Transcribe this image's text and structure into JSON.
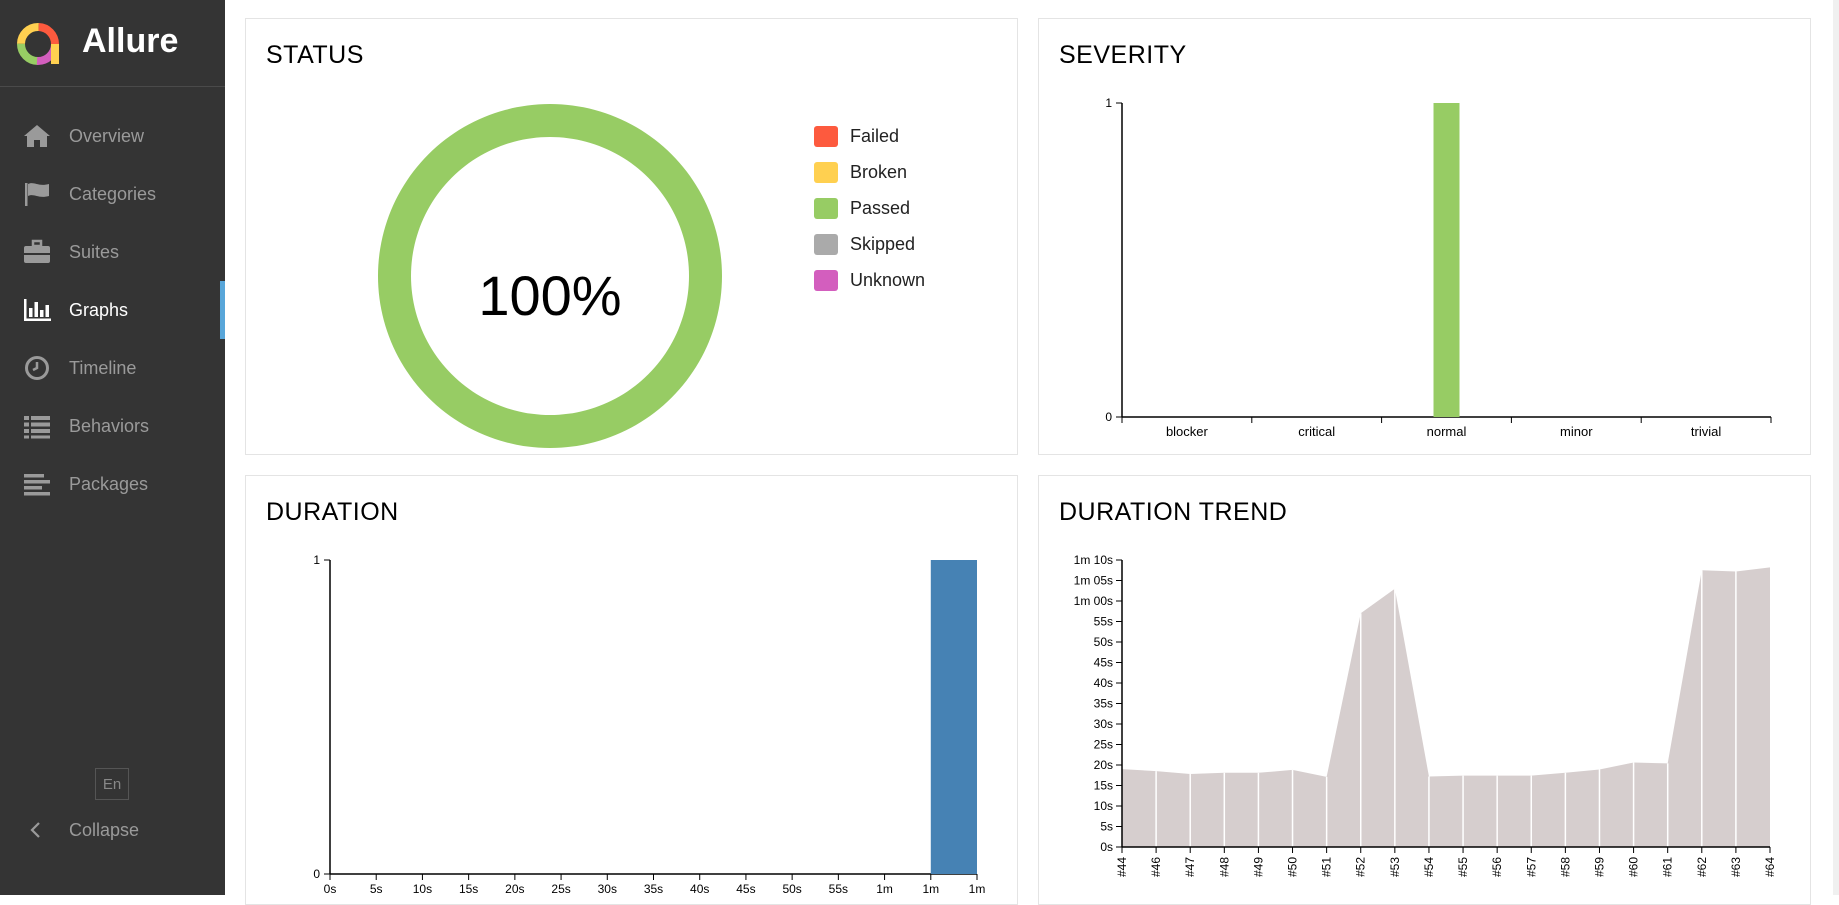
{
  "app": {
    "name": "Allure"
  },
  "sidebar": {
    "items": [
      {
        "label": "Overview",
        "icon": "home-icon"
      },
      {
        "label": "Categories",
        "icon": "flag-icon"
      },
      {
        "label": "Suites",
        "icon": "briefcase-icon"
      },
      {
        "label": "Graphs",
        "icon": "bar-chart-icon",
        "active": true
      },
      {
        "label": "Timeline",
        "icon": "clock-icon"
      },
      {
        "label": "Behaviors",
        "icon": "list-icon"
      },
      {
        "label": "Packages",
        "icon": "align-left-icon"
      }
    ],
    "language": "En",
    "collapse_label": "Collapse"
  },
  "status": {
    "title": "STATUS",
    "percent_label": "100%",
    "legend": [
      {
        "label": "Failed",
        "color": "#fd5a3e"
      },
      {
        "label": "Broken",
        "color": "#ffd050"
      },
      {
        "label": "Passed",
        "color": "#97cc64"
      },
      {
        "label": "Skipped",
        "color": "#aaaaaa"
      },
      {
        "label": "Unknown",
        "color": "#d35ebe"
      }
    ]
  },
  "severity": {
    "title": "SEVERITY"
  },
  "duration": {
    "title": "DURATION"
  },
  "duration_trend": {
    "title": "DURATION TREND"
  },
  "chart_data": [
    {
      "type": "pie",
      "title": "STATUS",
      "categories": [
        "Failed",
        "Broken",
        "Passed",
        "Skipped",
        "Unknown"
      ],
      "values": [
        0,
        0,
        1,
        0,
        0
      ],
      "colors": [
        "#fd5a3e",
        "#ffd050",
        "#97cc64",
        "#aaaaaa",
        "#d35ebe"
      ],
      "center_label": "100%",
      "legend": "right"
    },
    {
      "type": "bar",
      "title": "SEVERITY",
      "categories": [
        "blocker",
        "critical",
        "normal",
        "minor",
        "trivial"
      ],
      "values": [
        0,
        0,
        1,
        0,
        0
      ],
      "color": "#97cc64",
      "yticks": [
        "0",
        "1"
      ],
      "ylim": [
        0,
        1
      ]
    },
    {
      "type": "bar",
      "title": "DURATION",
      "xticks": [
        "0s",
        "5s",
        "10s",
        "15s",
        "20s",
        "25s",
        "30s",
        "35s",
        "40s",
        "45s",
        "50s",
        "55s",
        "1m",
        "1m",
        "1m"
      ],
      "xlim": [
        0,
        70
      ],
      "bins": [
        {
          "x0": 65,
          "x1": 70,
          "value": 1
        }
      ],
      "color": "#4682b4",
      "yticks": [
        "0",
        "1"
      ],
      "ylim": [
        0,
        1
      ]
    },
    {
      "type": "area",
      "title": "DURATION TREND",
      "categories": [
        "#44",
        "#46",
        "#47",
        "#48",
        "#49",
        "#50",
        "#51",
        "#52",
        "#53",
        "#54",
        "#55",
        "#56",
        "#57",
        "#58",
        "#59",
        "#60",
        "#61",
        "#62",
        "#63",
        "#64"
      ],
      "values": [
        19,
        18.5,
        17.8,
        18.1,
        18.1,
        18.8,
        17.1,
        57,
        63,
        17.2,
        17.4,
        17.4,
        17.4,
        18.1,
        18.9,
        20.6,
        20.4,
        67.5,
        67.2,
        68.2
      ],
      "value_unit": "s",
      "color": "#d6cece",
      "yticks": [
        "0s",
        "5s",
        "10s",
        "15s",
        "20s",
        "25s",
        "30s",
        "35s",
        "40s",
        "45s",
        "50s",
        "55s",
        "1m 00s",
        "1m 05s",
        "1m 10s"
      ],
      "ylim": [
        0,
        70
      ]
    }
  ]
}
